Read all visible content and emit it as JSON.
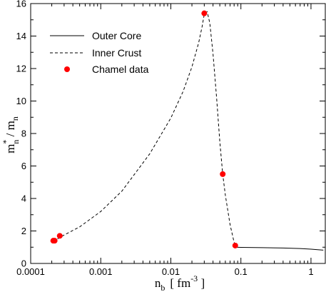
{
  "chart_data": {
    "type": "line",
    "x_scale": "log",
    "xlim": [
      0.0001,
      1.6
    ],
    "ylim": [
      0,
      16
    ],
    "x_ticks": [
      {
        "value": 0.0001,
        "label": "0.0001"
      },
      {
        "value": 0.001,
        "label": "0.001"
      },
      {
        "value": 0.01,
        "label": "0.01"
      },
      {
        "value": 0.1,
        "label": "0.1"
      },
      {
        "value": 1,
        "label": "1"
      }
    ],
    "y_ticks": [
      0,
      2,
      4,
      6,
      8,
      10,
      12,
      14,
      16
    ],
    "xlabel": {
      "base": "n",
      "sub": "b",
      "open": "[ fm",
      "sup": "-3",
      "close": " ]"
    },
    "ylabel": {
      "base": "m",
      "sup": "*",
      "sub": "n",
      "slash": " / m",
      "sub2": "n"
    },
    "legend_position": "top-left",
    "series": [
      {
        "name": "Outer Core",
        "style": "solid",
        "color": "#000000",
        "points": [
          [
            0.085,
            1.0
          ],
          [
            0.1,
            0.99
          ],
          [
            0.2,
            0.97
          ],
          [
            0.4,
            0.95
          ],
          [
            0.7,
            0.92
          ],
          [
            1.0,
            0.88
          ],
          [
            1.5,
            0.82
          ]
        ]
      },
      {
        "name": "Inner Crust",
        "style": "dashed",
        "color": "#000000",
        "points": [
          [
            0.00021,
            1.35
          ],
          [
            0.00025,
            1.55
          ],
          [
            0.0003,
            1.75
          ],
          [
            0.0005,
            2.25
          ],
          [
            0.001,
            3.2
          ],
          [
            0.002,
            4.45
          ],
          [
            0.005,
            6.75
          ],
          [
            0.01,
            8.95
          ],
          [
            0.015,
            10.6
          ],
          [
            0.02,
            12.1
          ],
          [
            0.025,
            13.6
          ],
          [
            0.028,
            14.6
          ],
          [
            0.03,
            15.35
          ],
          [
            0.033,
            15.5
          ],
          [
            0.036,
            14.8
          ],
          [
            0.04,
            12.9
          ],
          [
            0.045,
            10.2
          ],
          [
            0.05,
            7.5
          ],
          [
            0.055,
            5.5
          ],
          [
            0.06,
            4.2
          ],
          [
            0.07,
            2.4
          ],
          [
            0.08,
            1.3
          ],
          [
            0.085,
            1.05
          ]
        ]
      },
      {
        "name": "Chamel data",
        "style": "markers",
        "color": "#ff0000",
        "points": [
          [
            0.00021,
            1.4
          ],
          [
            0.00022,
            1.4
          ],
          [
            0.00026,
            1.7
          ],
          [
            0.03,
            15.4
          ],
          [
            0.055,
            5.5
          ],
          [
            0.083,
            1.1
          ]
        ]
      }
    ]
  }
}
